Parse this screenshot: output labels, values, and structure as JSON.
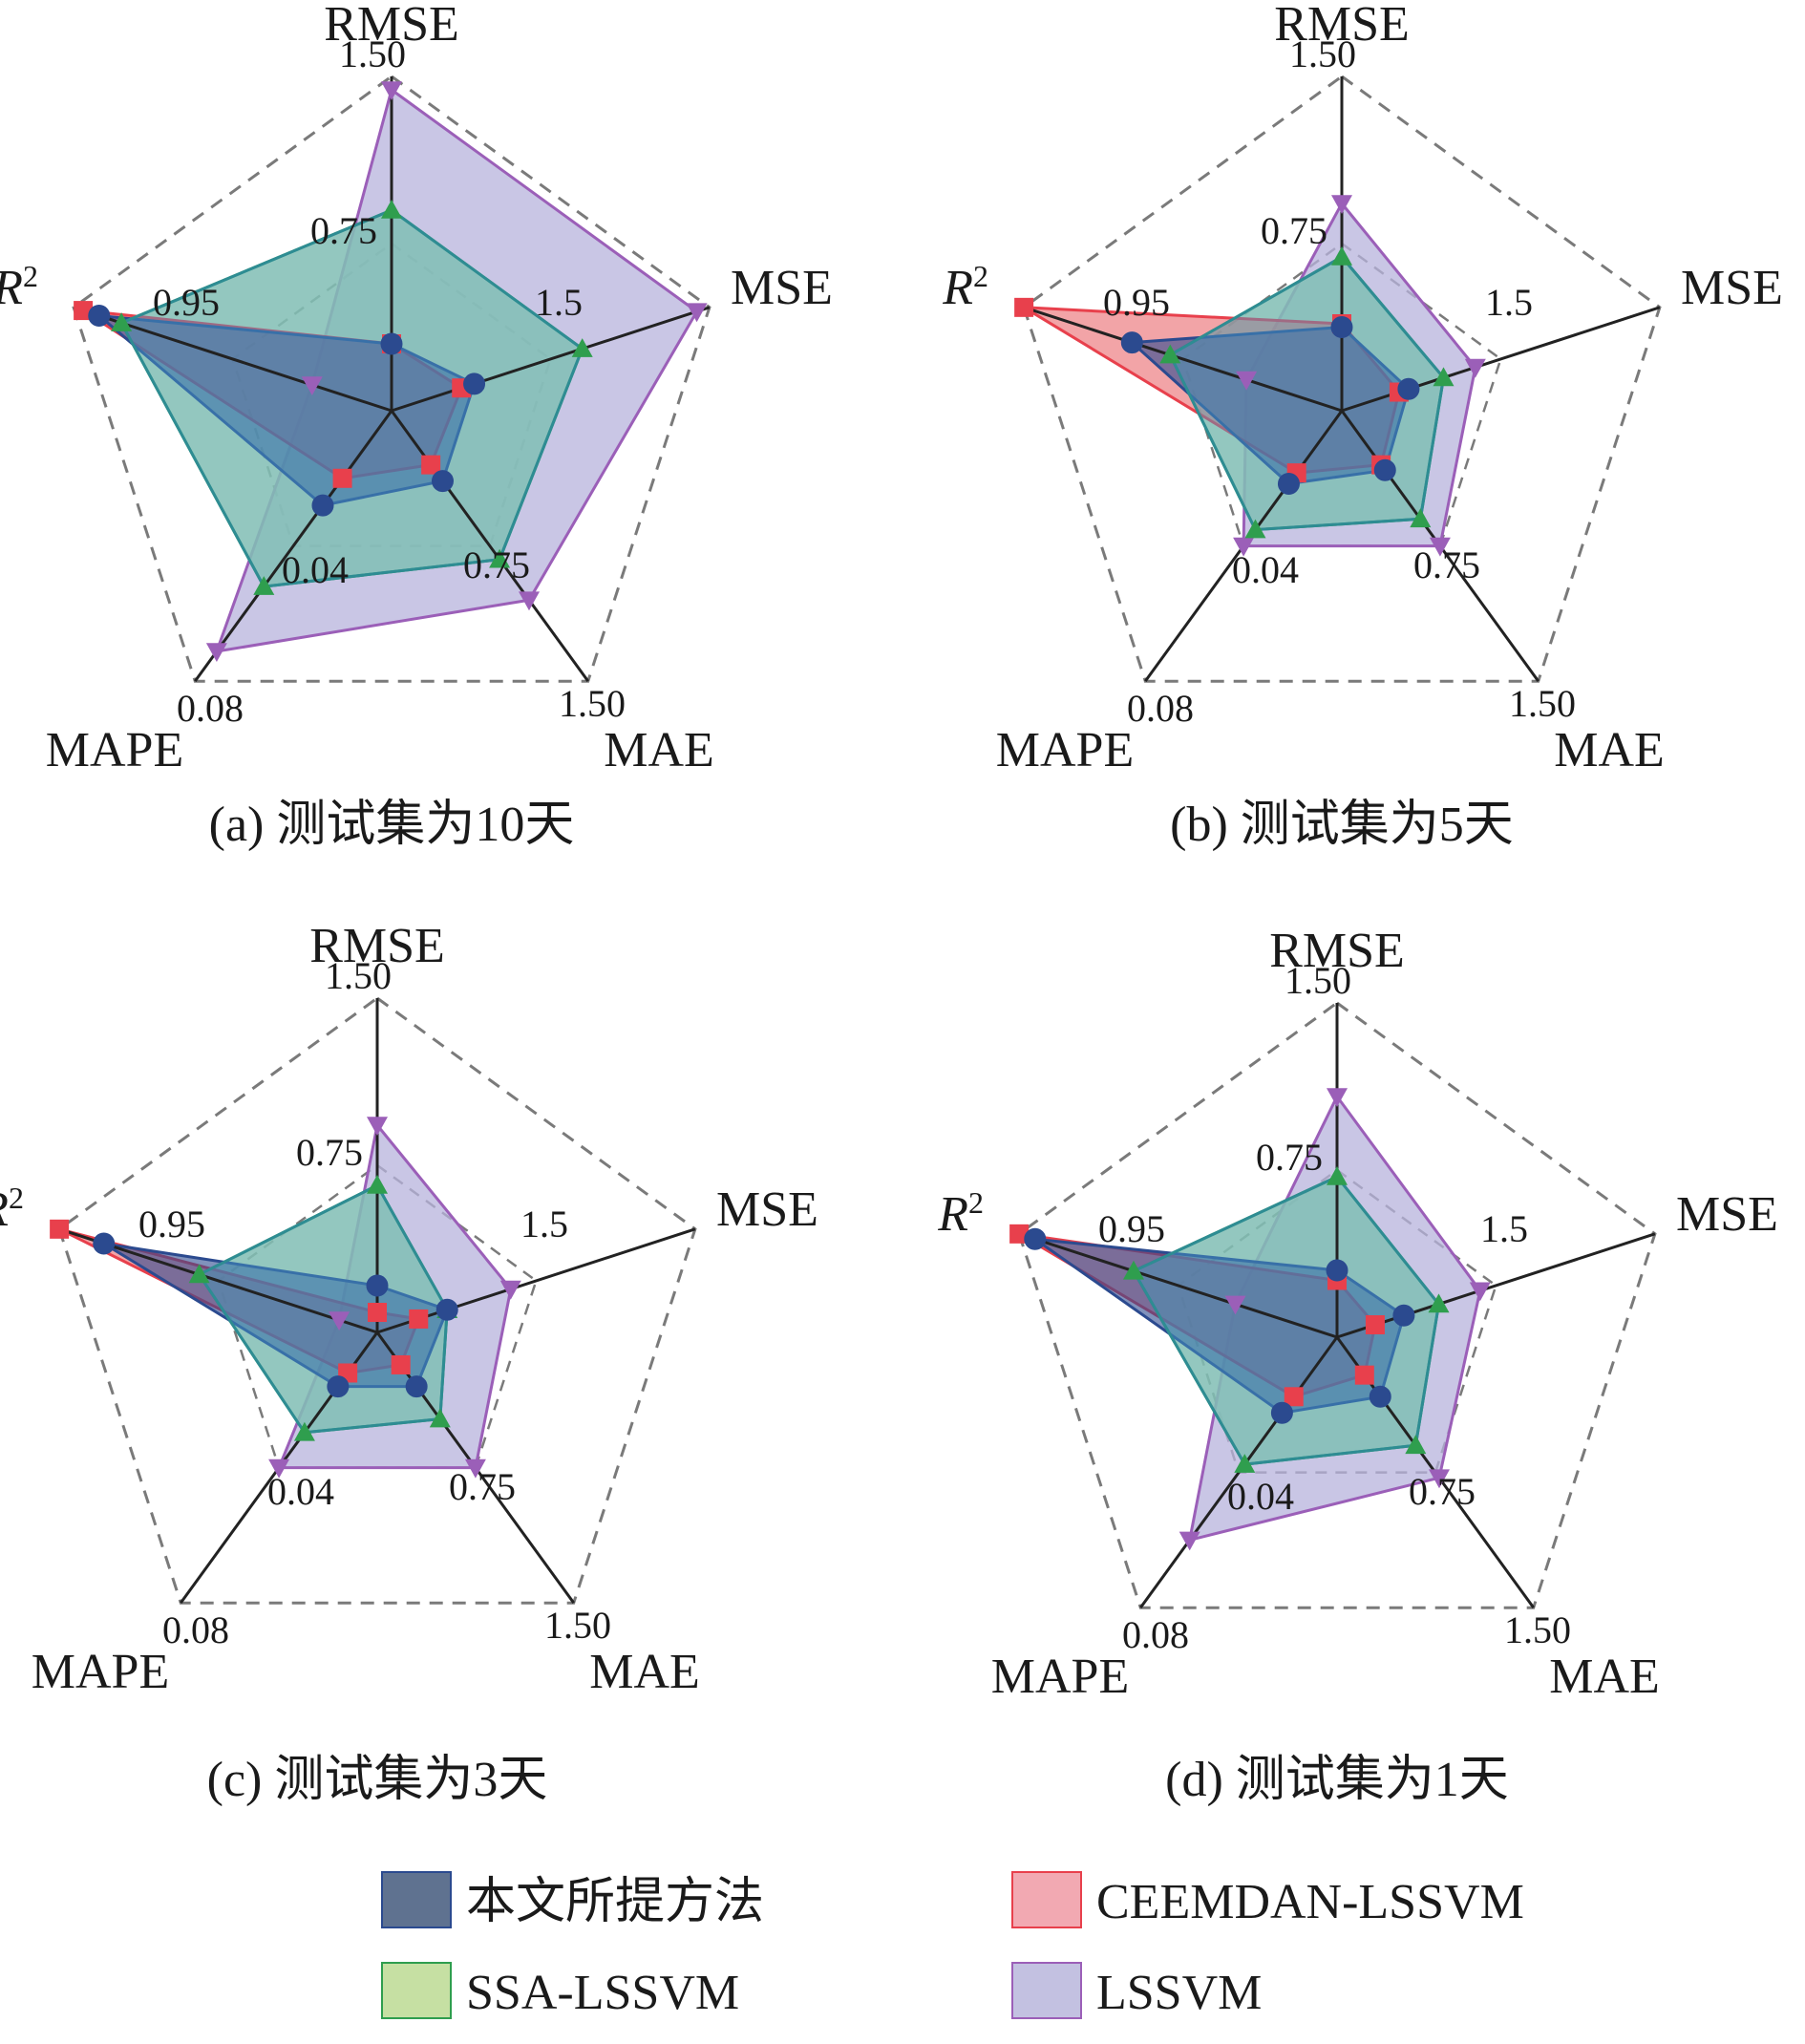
{
  "chart_data": [
    {
      "type": "radar",
      "caption": "(a) 测试集为10天",
      "axes": [
        {
          "name": "RMSE",
          "max_label": "1.50",
          "mid_label": "0.75"
        },
        {
          "name": "MSE",
          "mid_label": "1.5"
        },
        {
          "name": "MAE",
          "max_label": "1.50",
          "mid_label": "0.75"
        },
        {
          "name": "MAPE",
          "max_label": "0.08",
          "mid_label": "0.04"
        },
        {
          "name": "R",
          "superscript": "2",
          "mid_label": "0.95"
        }
      ],
      "series": [
        {
          "name": "LSSVM",
          "values": [
            0.96,
            0.96,
            0.7,
            0.89,
            0.25
          ]
        },
        {
          "name": "SSA-LSSVM",
          "values": [
            0.6,
            0.6,
            0.55,
            0.65,
            0.85
          ]
        },
        {
          "name": "CEEMDAN-LSSVM",
          "values": [
            0.2,
            0.22,
            0.2,
            0.25,
            0.97
          ]
        },
        {
          "name": "本文所提方法",
          "values": [
            0.2,
            0.26,
            0.26,
            0.35,
            0.92
          ]
        }
      ]
    },
    {
      "type": "radar",
      "caption": "(b) 测试集为5天",
      "axes": [
        {
          "name": "RMSE",
          "max_label": "1.50",
          "mid_label": "0.75"
        },
        {
          "name": "MSE",
          "mid_label": "1.5"
        },
        {
          "name": "MAE",
          "max_label": "1.50",
          "mid_label": "0.75"
        },
        {
          "name": "MAPE",
          "max_label": "0.08",
          "mid_label": "0.04"
        },
        {
          "name": "R",
          "superscript": "2",
          "mid_label": "0.95"
        }
      ],
      "series": [
        {
          "name": "LSSVM",
          "values": [
            0.62,
            0.42,
            0.5,
            0.5,
            0.3
          ]
        },
        {
          "name": "SSA-LSSVM",
          "values": [
            0.46,
            0.32,
            0.4,
            0.44,
            0.54
          ]
        },
        {
          "name": "CEEMDAN-LSSVM",
          "values": [
            0.26,
            0.18,
            0.2,
            0.23,
            1.0
          ]
        },
        {
          "name": "本文所提方法",
          "values": [
            0.25,
            0.21,
            0.22,
            0.27,
            0.66
          ]
        }
      ]
    },
    {
      "type": "radar",
      "caption": "(c) 测试集为3天",
      "axes": [
        {
          "name": "RMSE",
          "max_label": "1.50",
          "mid_label": "0.75"
        },
        {
          "name": "MSE",
          "mid_label": "1.5"
        },
        {
          "name": "MAE",
          "max_label": "1.50",
          "mid_label": "0.75"
        },
        {
          "name": "MAPE",
          "max_label": "0.08",
          "mid_label": "0.04"
        },
        {
          "name": "R",
          "superscript": "2",
          "mid_label": "0.95"
        }
      ],
      "series": [
        {
          "name": "LSSVM",
          "values": [
            0.62,
            0.42,
            0.5,
            0.5,
            0.12
          ]
        },
        {
          "name": "SSA-LSSVM",
          "values": [
            0.44,
            0.22,
            0.32,
            0.37,
            0.56
          ]
        },
        {
          "name": "CEEMDAN-LSSVM",
          "values": [
            0.06,
            0.13,
            0.12,
            0.15,
            1.0
          ]
        },
        {
          "name": "本文所提方法",
          "values": [
            0.14,
            0.22,
            0.2,
            0.2,
            0.86
          ]
        }
      ]
    },
    {
      "type": "radar",
      "caption": "(d) 测试集为1天",
      "axes": [
        {
          "name": "RMSE",
          "max_label": "1.50",
          "mid_label": "0.75"
        },
        {
          "name": "MSE",
          "mid_label": "1.5"
        },
        {
          "name": "MAE",
          "max_label": "1.50",
          "mid_label": "0.75"
        },
        {
          "name": "MAPE",
          "max_label": "0.08",
          "mid_label": "0.04"
        },
        {
          "name": "R",
          "superscript": "2",
          "mid_label": "0.95"
        }
      ],
      "series": [
        {
          "name": "LSSVM",
          "values": [
            0.72,
            0.45,
            0.52,
            0.75,
            0.32
          ]
        },
        {
          "name": "SSA-LSSVM",
          "values": [
            0.48,
            0.32,
            0.4,
            0.47,
            0.64
          ]
        },
        {
          "name": "CEEMDAN-LSSVM",
          "values": [
            0.17,
            0.12,
            0.14,
            0.22,
            1.0
          ]
        },
        {
          "name": "本文所提方法",
          "values": [
            0.2,
            0.21,
            0.22,
            0.28,
            0.95
          ]
        }
      ]
    }
  ],
  "legend": [
    {
      "name": "本文所提方法",
      "fill": "#5f7290",
      "stroke": "#2b4a8f"
    },
    {
      "name": "CEEMDAN-LSSVM",
      "fill": "#f2a9b2",
      "stroke": "#e8404c"
    },
    {
      "name": "SSA-LSSVM",
      "fill": "#c6e0a3",
      "stroke": "#2f9e4e"
    },
    {
      "name": "LSSVM",
      "fill": "#c3c1e1",
      "stroke": "#9b5fb8"
    }
  ],
  "series_styles": {
    "LSSVM": {
      "fill": "#b7b3dc",
      "stroke": "#9b5fb8",
      "marker": "triangle-down"
    },
    "SSA-LSSVM": {
      "fill": "#bfe0a0",
      "stroke": "#2f9e4e",
      "marker": "triangle-up"
    },
    "CEEMDAN-LSSVM": {
      "fill": "#e85a5f",
      "stroke": "#e8404c",
      "marker": "square"
    },
    "本文所提方法": {
      "fill": "#2b4a8f",
      "stroke": "#2b4a8f",
      "marker": "circle"
    },
    "overlay": {
      "fill": "#4a9fc8",
      "stroke": "#2e8c93"
    }
  }
}
